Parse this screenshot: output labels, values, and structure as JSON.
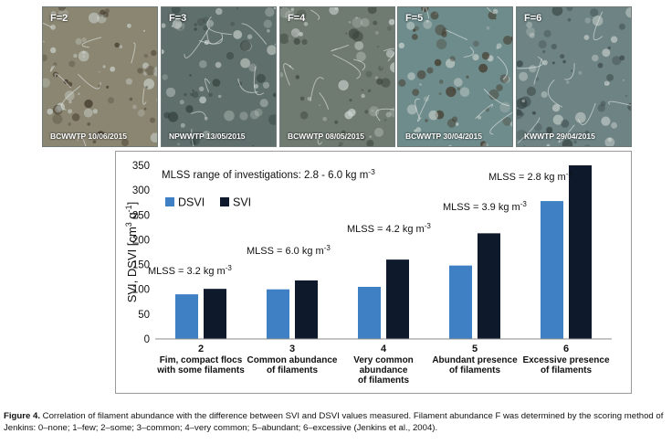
{
  "photos": [
    {
      "f_label": "F=2",
      "caption": "BCWWTP 10/06/2015",
      "tone": "#8a8672",
      "dark": "#3a2f22"
    },
    {
      "f_label": "F=3",
      "caption": "NPWWTP 13/05/2015",
      "tone": "#5f6f6c",
      "dark": "#2d3a36"
    },
    {
      "f_label": "F=4",
      "caption": "BCWWTP 08/05/2015",
      "tone": "#6f7a70",
      "dark": "#3b443c"
    },
    {
      "f_label": "F=5",
      "caption": "BCWWTP 30/04/2015",
      "tone": "#6e8c8c",
      "dark": "#3f3020"
    },
    {
      "f_label": "F=6",
      "caption": "KWWTP 29/04/2015",
      "tone": "#6d8384",
      "dark": "#34403f"
    }
  ],
  "chart_data": {
    "type": "bar",
    "ylabel_main": "SVI, DSVI [cm",
    "ylabel_sup1": "3",
    "ylabel_mid": " g",
    "ylabel_sup2": "-1",
    "ylabel_end": "]",
    "ylim": [
      0,
      350
    ],
    "yticks": [
      "0",
      "50",
      "100",
      "150",
      "200",
      "250",
      "300",
      "350"
    ],
    "grid": false,
    "legend_position": "top-left",
    "categories": [
      {
        "num": "2",
        "lines": [
          "Fim, compact flocs",
          "with some filaments"
        ]
      },
      {
        "num": "3",
        "lines": [
          "Common abundance",
          "of filaments"
        ]
      },
      {
        "num": "4",
        "lines": [
          "Very common",
          "abundance",
          "of filaments"
        ]
      },
      {
        "num": "5",
        "lines": [
          "Abundant presence",
          "of  filaments"
        ]
      },
      {
        "num": "6",
        "lines": [
          "Excessive presence",
          "of filaments"
        ]
      }
    ],
    "series": [
      {
        "name": "DSVI",
        "color": "#3f7fc4",
        "values": [
          90,
          100,
          105,
          148,
          278
        ]
      },
      {
        "name": "SVI",
        "color": "#0e1a2c",
        "values": [
          101,
          118,
          160,
          213,
          350
        ]
      }
    ],
    "annotations": {
      "range_text": "MLSS range of investigations: 2.8 - 6.0 kg m",
      "range_sup": "-3",
      "mlss": [
        {
          "text": "MLSS = 3.2 kg m",
          "sup": "-3"
        },
        {
          "text": "MLSS = 6.0 kg m",
          "sup": "-3"
        },
        {
          "text": "MLSS = 4.2 kg m",
          "sup": "-3"
        },
        {
          "text": "MLSS = 3.9 kg m",
          "sup": "-3"
        },
        {
          "text": "MLSS = 2.8 kg m",
          "sup": "-3"
        }
      ]
    }
  },
  "caption": {
    "label": "Figure 4.",
    "text": " Correlation of filament abundance with the difference between SVI and DSVI values measured. Filament abundance F was determined by the scoring method of Jenkins: 0–none; 1–few; 2–some; 3–common; 4–very common; 5–abundant; 6–excessive (Jenkins et al., 2004)."
  }
}
